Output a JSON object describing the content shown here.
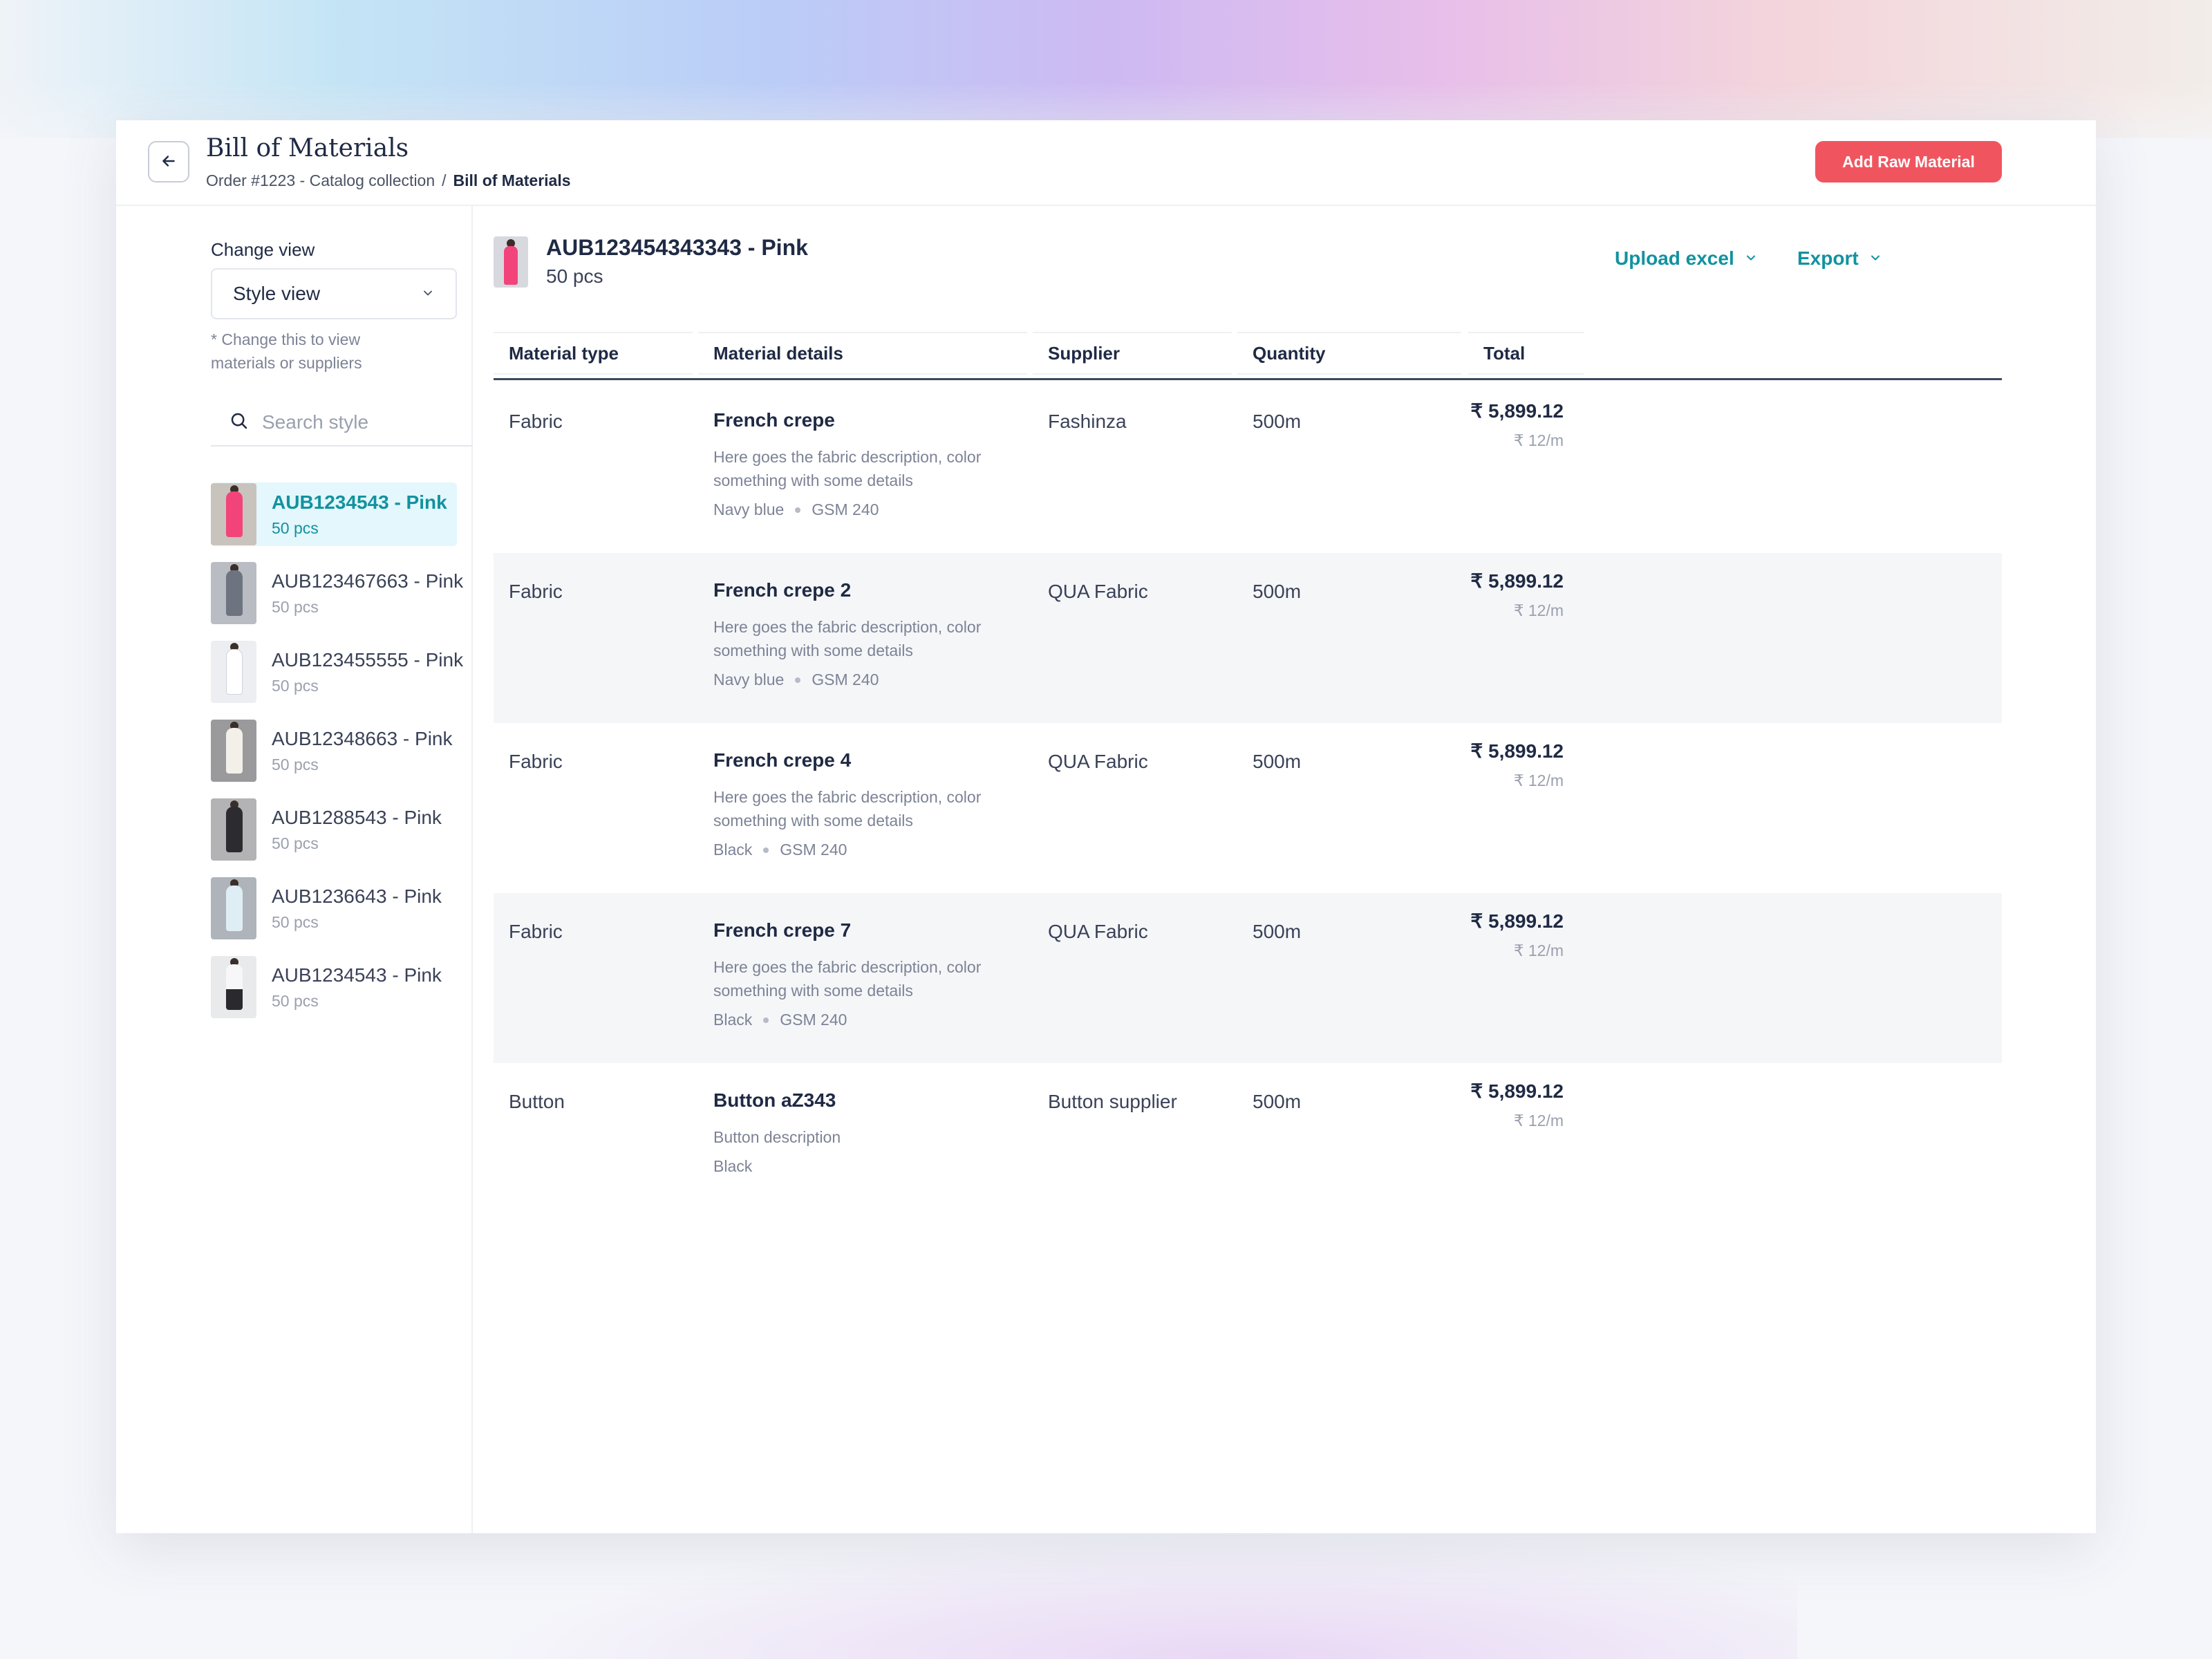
{
  "header": {
    "title": "Bill of Materials",
    "breadcrumb": [
      "Order #1223 - Catalog collection",
      "/",
      "Bill of Materials"
    ],
    "add_button_label": "Add Raw Material",
    "back_icon": "arrow-left-icon"
  },
  "sidebar": {
    "change_view_label": "Change view",
    "view_select_value": "Style view",
    "change_view_hint": "* Change this to view materials or suppliers",
    "search_placeholder": "Search style",
    "styles": [
      {
        "name": "AUB1234543 - Pink",
        "qty": "50 pcs",
        "active": true
      },
      {
        "name": "AUB123467663 - Pink",
        "qty": "50 pcs",
        "active": false
      },
      {
        "name": "AUB123455555 - Pink",
        "qty": "50 pcs",
        "active": false
      },
      {
        "name": "AUB12348663 - Pink",
        "qty": "50 pcs",
        "active": false
      },
      {
        "name": "AUB1288543 - Pink",
        "qty": "50 pcs",
        "active": false
      },
      {
        "name": "AUB1236643 - Pink",
        "qty": "50 pcs",
        "active": false
      },
      {
        "name": "AUB1234543 - Pink",
        "qty": "50 pcs",
        "active": false
      }
    ]
  },
  "main": {
    "product_title": "AUB123454343343 - Pink",
    "product_qty": "50 pcs",
    "upload_label": "Upload excel",
    "export_label": "Export",
    "columns": [
      "Material type",
      "Material details",
      "Supplier",
      "Quantity",
      "Total"
    ],
    "rows": [
      {
        "type": "Fabric",
        "name": "French crepe",
        "description": "Here goes the fabric description, color something with some details",
        "attrs": [
          "Navy blue",
          "GSM 240"
        ],
        "supplier": "Fashinza",
        "quantity": "500m",
        "total": "₹ 5,899.12",
        "rate": "₹ 12/m"
      },
      {
        "type": "Fabric",
        "name": "French crepe 2",
        "description": "Here goes the fabric description, color something with some details",
        "attrs": [
          "Navy blue",
          "GSM 240"
        ],
        "supplier": "QUA Fabric",
        "quantity": "500m",
        "total": "₹ 5,899.12",
        "rate": "₹ 12/m"
      },
      {
        "type": "Fabric",
        "name": "French crepe 4",
        "description": "Here goes the fabric description, color something with some details",
        "attrs": [
          "Black",
          "GSM 240"
        ],
        "supplier": "QUA Fabric",
        "quantity": "500m",
        "total": "₹ 5,899.12",
        "rate": "₹ 12/m"
      },
      {
        "type": "Fabric",
        "name": "French crepe 7",
        "description": "Here goes the fabric description, color something with some details",
        "attrs": [
          "Black",
          "GSM 240"
        ],
        "supplier": "QUA Fabric",
        "quantity": "500m",
        "total": "₹ 5,899.12",
        "rate": "₹ 12/m"
      },
      {
        "type": "Button",
        "name": "Button aZ343",
        "description": "Button description",
        "attrs": [
          "Black"
        ],
        "supplier": "Button supplier",
        "quantity": "500m",
        "total": "₹ 5,899.12",
        "rate": "₹ 12/m"
      }
    ]
  },
  "colors": {
    "accent": "#12929f",
    "primary_button": "#f0555f",
    "text_dark": "#1f2a44",
    "muted": "#7c8396",
    "active_bg": "#e3f7fc"
  }
}
